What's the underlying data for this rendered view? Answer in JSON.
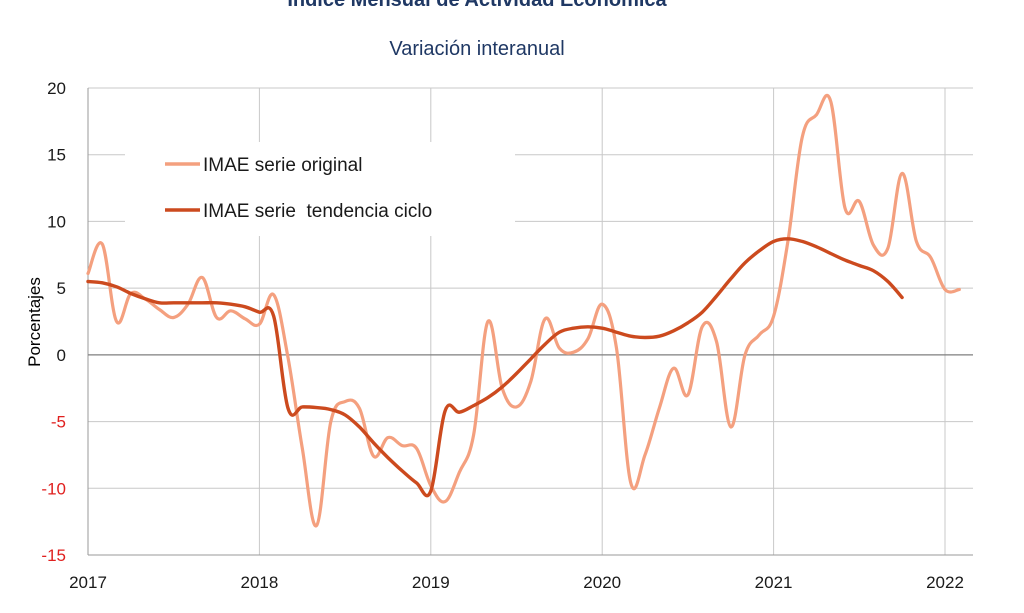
{
  "chart_data": {
    "type": "line",
    "title": "Indice Mensual de  Actividad Economica",
    "subtitle": "Variación interanual",
    "ylabel": "Porcentajes",
    "xlabel": "",
    "ylim": [
      -15,
      20
    ],
    "xlim": [
      "2017-01",
      "2022-03"
    ],
    "y_ticks": [
      20,
      15,
      10,
      5,
      0,
      -5,
      -10,
      -15
    ],
    "x_ticks": [
      "2017",
      "2018",
      "2019",
      "2020",
      "2021",
      "2022"
    ],
    "grid": true,
    "legend_position": "top-left",
    "negative_tick_color": "#e0201f",
    "series": [
      {
        "name": "IMAE serie original",
        "color": "#f4a07f",
        "points": [
          [
            "2017-01",
            6.1
          ],
          [
            "2017-02",
            8.3
          ],
          [
            "2017-03",
            2.5
          ],
          [
            "2017-04",
            4.6
          ],
          [
            "2017-05",
            4.2
          ],
          [
            "2017-06",
            3.4
          ],
          [
            "2017-07",
            2.8
          ],
          [
            "2017-08",
            3.8
          ],
          [
            "2017-09",
            5.8
          ],
          [
            "2017-10",
            2.8
          ],
          [
            "2017-11",
            3.3
          ],
          [
            "2017-12",
            2.7
          ],
          [
            "2018-01",
            2.3
          ],
          [
            "2018-02",
            4.5
          ],
          [
            "2018-03",
            -0.2
          ],
          [
            "2018-04",
            -7.0
          ],
          [
            "2018-05",
            -12.8
          ],
          [
            "2018-06",
            -5.0
          ],
          [
            "2018-07",
            -3.5
          ],
          [
            "2018-08",
            -4.0
          ],
          [
            "2018-09",
            -7.6
          ],
          [
            "2018-10",
            -6.2
          ],
          [
            "2018-11",
            -6.8
          ],
          [
            "2018-12",
            -7.0
          ],
          [
            "2019-01",
            -9.8
          ],
          [
            "2019-02",
            -11.0
          ],
          [
            "2019-03",
            -8.8
          ],
          [
            "2019-04",
            -6.0
          ],
          [
            "2019-05",
            2.5
          ],
          [
            "2019-06",
            -2.5
          ],
          [
            "2019-07",
            -3.9
          ],
          [
            "2019-08",
            -2.0
          ],
          [
            "2019-09",
            2.7
          ],
          [
            "2019-10",
            0.5
          ],
          [
            "2019-11",
            0.2
          ],
          [
            "2019-12",
            1.2
          ],
          [
            "2020-01",
            3.8
          ],
          [
            "2020-02",
            0.5
          ],
          [
            "2020-03",
            -9.6
          ],
          [
            "2020-04",
            -7.5
          ],
          [
            "2020-05",
            -4.0
          ],
          [
            "2020-06",
            -1.0
          ],
          [
            "2020-07",
            -3.0
          ],
          [
            "2020-08",
            2.1
          ],
          [
            "2020-09",
            1.0
          ],
          [
            "2020-10",
            -5.4
          ],
          [
            "2020-11",
            0.0
          ],
          [
            "2020-12",
            1.5
          ],
          [
            "2021-01",
            2.9
          ],
          [
            "2021-02",
            8.5
          ],
          [
            "2021-03",
            16.3
          ],
          [
            "2021-04",
            18.0
          ],
          [
            "2021-05",
            19.0
          ],
          [
            "2021-06",
            11.0
          ],
          [
            "2021-07",
            11.5
          ],
          [
            "2021-08",
            8.2
          ],
          [
            "2021-09",
            8.0
          ],
          [
            "2021-10",
            13.6
          ],
          [
            "2021-11",
            8.5
          ],
          [
            "2021-12",
            7.3
          ],
          [
            "2022-01",
            4.9
          ],
          [
            "2022-02",
            4.9
          ]
        ]
      },
      {
        "name": "IMAE serie  tendencia ciclo",
        "color": "#cc4a1e",
        "points": [
          [
            "2017-01",
            5.5
          ],
          [
            "2017-02",
            5.4
          ],
          [
            "2017-03",
            5.1
          ],
          [
            "2017-04",
            4.6
          ],
          [
            "2017-05",
            4.2
          ],
          [
            "2017-06",
            3.9
          ],
          [
            "2017-07",
            3.9
          ],
          [
            "2017-08",
            3.9
          ],
          [
            "2017-09",
            3.9
          ],
          [
            "2017-10",
            3.9
          ],
          [
            "2017-11",
            3.8
          ],
          [
            "2017-12",
            3.6
          ],
          [
            "2018-01",
            3.2
          ],
          [
            "2018-02",
            2.9
          ],
          [
            "2018-03",
            -4.0
          ],
          [
            "2018-04",
            -3.9
          ],
          [
            "2018-05",
            -3.95
          ],
          [
            "2018-06",
            -4.1
          ],
          [
            "2018-07",
            -4.5
          ],
          [
            "2018-08",
            -5.4
          ],
          [
            "2018-09",
            -6.6
          ],
          [
            "2018-10",
            -7.7
          ],
          [
            "2018-11",
            -8.7
          ],
          [
            "2018-12",
            -9.6
          ],
          [
            "2019-01",
            -10.2
          ],
          [
            "2019-02",
            -4.2
          ],
          [
            "2019-03",
            -4.3
          ],
          [
            "2019-04",
            -3.8
          ],
          [
            "2019-05",
            -3.2
          ],
          [
            "2019-06",
            -2.4
          ],
          [
            "2019-07",
            -1.4
          ],
          [
            "2019-08",
            -0.3
          ],
          [
            "2019-09",
            0.8
          ],
          [
            "2019-10",
            1.7
          ],
          [
            "2019-11",
            2.0
          ],
          [
            "2019-12",
            2.1
          ],
          [
            "2020-01",
            2.0
          ],
          [
            "2020-02",
            1.7
          ],
          [
            "2020-03",
            1.4
          ],
          [
            "2020-04",
            1.3
          ],
          [
            "2020-05",
            1.4
          ],
          [
            "2020-06",
            1.8
          ],
          [
            "2020-07",
            2.4
          ],
          [
            "2020-08",
            3.2
          ],
          [
            "2020-09",
            4.4
          ],
          [
            "2020-10",
            5.7
          ],
          [
            "2020-11",
            6.9
          ],
          [
            "2020-12",
            7.8
          ],
          [
            "2021-01",
            8.5
          ],
          [
            "2021-02",
            8.7
          ],
          [
            "2021-03",
            8.5
          ],
          [
            "2021-04",
            8.1
          ],
          [
            "2021-05",
            7.6
          ],
          [
            "2021-06",
            7.1
          ],
          [
            "2021-07",
            6.7
          ],
          [
            "2021-08",
            6.3
          ],
          [
            "2021-09",
            5.5
          ],
          [
            "2021-10",
            4.3
          ]
        ]
      }
    ]
  }
}
